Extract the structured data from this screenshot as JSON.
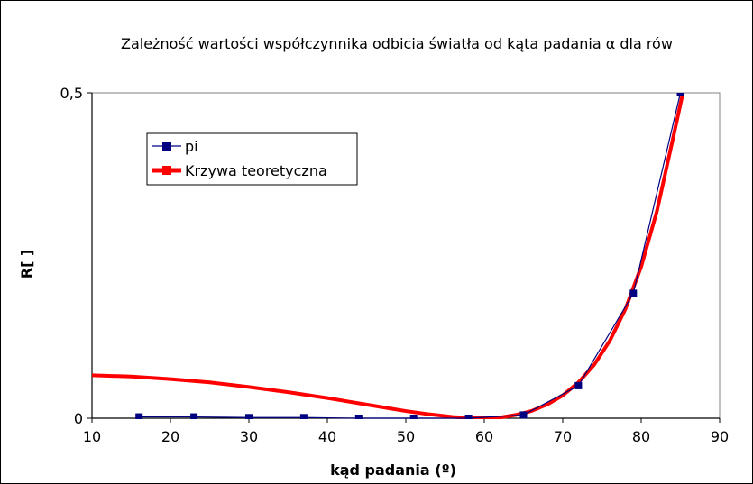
{
  "chart_data": {
    "type": "line",
    "title": "Zależność wartości współczynnika odbicia światła od kąta padania α dla rów",
    "xlabel": "kąd padania (º)",
    "ylabel": "R[ ]",
    "xlim": [
      10,
      90
    ],
    "ylim": [
      0,
      0.5
    ],
    "xticks": [
      "10",
      "20",
      "30",
      "40",
      "50",
      "60",
      "70",
      "80",
      "90"
    ],
    "yticks": [
      "0",
      "0,5"
    ],
    "grid": false,
    "legend_position": "top-left",
    "series": [
      {
        "name": "pi",
        "color": "#000080",
        "marker": "square",
        "x": [
          16,
          23,
          30,
          37,
          44,
          51,
          58,
          65,
          72,
          79,
          85
        ],
        "y": [
          0.002,
          0.002,
          0.001,
          0.001,
          0.0,
          0.0,
          0.0,
          0.005,
          0.05,
          0.192,
          0.5
        ]
      },
      {
        "name": "Krzywa teoretyczna",
        "color": "#ff0000",
        "marker": "none",
        "x": [
          10,
          15,
          20,
          25,
          30,
          35,
          40,
          45,
          50,
          53,
          56,
          58,
          60,
          62,
          64,
          66,
          68,
          70,
          72,
          74,
          76,
          78,
          80,
          82,
          84,
          85.5
        ],
        "y": [
          0.066,
          0.064,
          0.06,
          0.055,
          0.048,
          0.04,
          0.031,
          0.021,
          0.011,
          0.006,
          0.002,
          0.0004,
          0.0,
          0.001,
          0.005,
          0.011,
          0.021,
          0.035,
          0.055,
          0.082,
          0.119,
          0.168,
          0.233,
          0.318,
          0.427,
          0.51
        ]
      }
    ]
  }
}
